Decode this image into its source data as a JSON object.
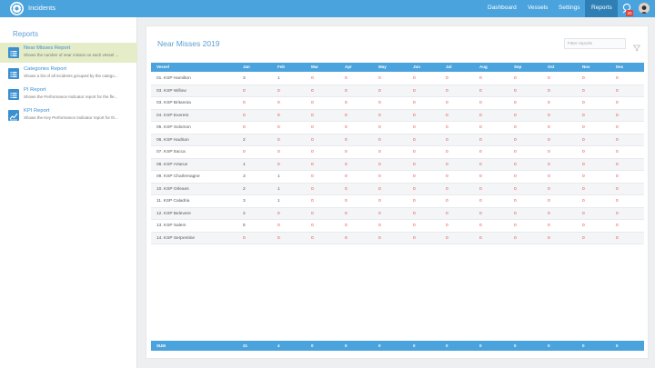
{
  "app": {
    "title": "Incidents"
  },
  "nav": {
    "items": [
      "Dashboard",
      "Vessels",
      "Settings",
      "Reports"
    ],
    "active": "Reports",
    "notification_count": "20"
  },
  "sidebar": {
    "title": "Reports",
    "items": [
      {
        "label": "Near Misses Report",
        "desc": "Shows the number of near misses on each vessel ...",
        "icon": "list-icon"
      },
      {
        "label": "Categories Report",
        "desc": "Shows a list of all incidents grouped by the catego...",
        "icon": "list-icon"
      },
      {
        "label": "PI Report",
        "desc": "Shows the Performance Indicator report for the fle...",
        "icon": "list-icon"
      },
      {
        "label": "KPI Report",
        "desc": "Shows the Key Performance Indicator report for th...",
        "icon": "chart-icon"
      }
    ]
  },
  "main": {
    "title": "Near Misses 2019",
    "filter_placeholder": "Filter reports",
    "columns": [
      "Vessel",
      "Jan",
      "Feb",
      "Mar",
      "Apr",
      "May",
      "Jun",
      "Jul",
      "Aug",
      "Sep",
      "Oct",
      "Nov",
      "Dec"
    ],
    "rows": [
      [
        "01. KSP Hamilton",
        "3",
        "1",
        "0",
        "0",
        "0",
        "0",
        "0",
        "0",
        "0",
        "0",
        "0",
        "0"
      ],
      [
        "03. KSP Willow",
        "0",
        "0",
        "0",
        "0",
        "0",
        "0",
        "0",
        "0",
        "0",
        "0",
        "0",
        "0"
      ],
      [
        "03. KSP Britannia",
        "0",
        "0",
        "0",
        "0",
        "0",
        "0",
        "0",
        "0",
        "0",
        "0",
        "0",
        "0"
      ],
      [
        "04. KSP Everest",
        "0",
        "0",
        "0",
        "0",
        "0",
        "0",
        "0",
        "0",
        "0",
        "0",
        "0",
        "0"
      ],
      [
        "05. KSP Solomon",
        "0",
        "0",
        "0",
        "0",
        "0",
        "0",
        "0",
        "0",
        "0",
        "0",
        "0",
        "0"
      ],
      [
        "06. KSP Hadrian",
        "2",
        "0",
        "0",
        "0",
        "0",
        "0",
        "0",
        "0",
        "0",
        "0",
        "0",
        "0"
      ],
      [
        "07. KSP Itacca",
        "0",
        "0",
        "0",
        "0",
        "0",
        "0",
        "0",
        "0",
        "0",
        "0",
        "0",
        "0"
      ],
      [
        "08. KSP Artarus",
        "1",
        "0",
        "0",
        "0",
        "0",
        "0",
        "0",
        "0",
        "0",
        "0",
        "0",
        "0"
      ],
      [
        "09. KSP Charlemagne",
        "3",
        "1",
        "0",
        "0",
        "0",
        "0",
        "0",
        "0",
        "0",
        "0",
        "0",
        "0"
      ],
      [
        "10. KSP Orleans",
        "2",
        "1",
        "0",
        "0",
        "0",
        "0",
        "0",
        "0",
        "0",
        "0",
        "0",
        "0"
      ],
      [
        "11. KSP Caladria",
        "3",
        "1",
        "0",
        "0",
        "0",
        "0",
        "0",
        "0",
        "0",
        "0",
        "0",
        "0"
      ],
      [
        "12. KSP Belevere",
        "2",
        "0",
        "0",
        "0",
        "0",
        "0",
        "0",
        "0",
        "0",
        "0",
        "0",
        "0"
      ],
      [
        "13. KSP Salem",
        "5",
        "0",
        "0",
        "0",
        "0",
        "0",
        "0",
        "0",
        "0",
        "0",
        "0",
        "0"
      ],
      [
        "14. KSP Serpentine",
        "0",
        "0",
        "0",
        "0",
        "0",
        "0",
        "0",
        "0",
        "0",
        "0",
        "0",
        "0"
      ]
    ],
    "footer": [
      "SUM",
      "21",
      "4",
      "0",
      "0",
      "0",
      "0",
      "0",
      "0",
      "0",
      "0",
      "0",
      "0"
    ]
  },
  "colors": {
    "accent": "#4aa3dc",
    "nav_active": "#2f7fb5",
    "zero_value": "#e24a4a",
    "selected_item": "#e4ecc8"
  }
}
